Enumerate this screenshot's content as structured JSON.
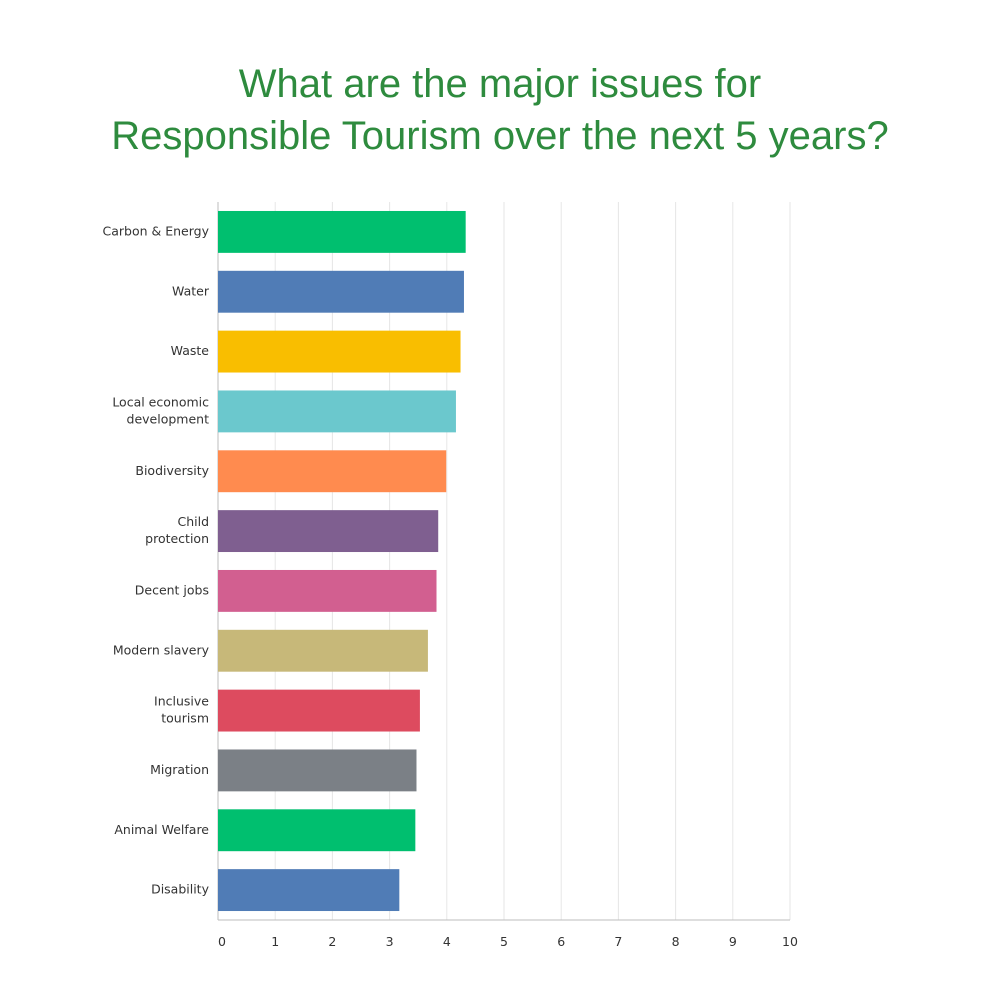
{
  "title_lines": [
    "What are the major issues for",
    "Responsible Tourism over the next 5 years?"
  ],
  "colors": {
    "title": "#2e8b3e",
    "grid": "#e6e6e6",
    "axis": "#bdbdbd"
  },
  "chart_data": {
    "type": "bar",
    "orientation": "horizontal",
    "title": "What are the major issues for Responsible Tourism over the next 5 years?",
    "xlabel": "",
    "ylabel": "",
    "xlim": [
      0,
      10
    ],
    "x_ticks": [
      0,
      1,
      2,
      3,
      4,
      5,
      6,
      7,
      8,
      9,
      10
    ],
    "grid": true,
    "legend": "none",
    "categories": [
      [
        "Carbon & Energy"
      ],
      [
        "Water"
      ],
      [
        "Waste"
      ],
      [
        "Local economic",
        "development"
      ],
      [
        "Biodiversity"
      ],
      [
        "Child",
        "protection"
      ],
      [
        "Decent jobs"
      ],
      [
        "Modern slavery"
      ],
      [
        "Inclusive",
        "tourism"
      ],
      [
        "Migration"
      ],
      [
        "Animal Welfare"
      ],
      [
        "Disability"
      ]
    ],
    "values": [
      4.33,
      4.3,
      4.24,
      4.16,
      3.99,
      3.85,
      3.82,
      3.67,
      3.53,
      3.47,
      3.45,
      3.17
    ],
    "bar_colors": [
      "#00bf6f",
      "#507cb6",
      "#f9be00",
      "#6bc8cd",
      "#ff8b4f",
      "#7f5f90",
      "#d25f90",
      "#c7b879",
      "#dd4b5f",
      "#7b8086",
      "#00bf6f",
      "#507cb6"
    ]
  }
}
